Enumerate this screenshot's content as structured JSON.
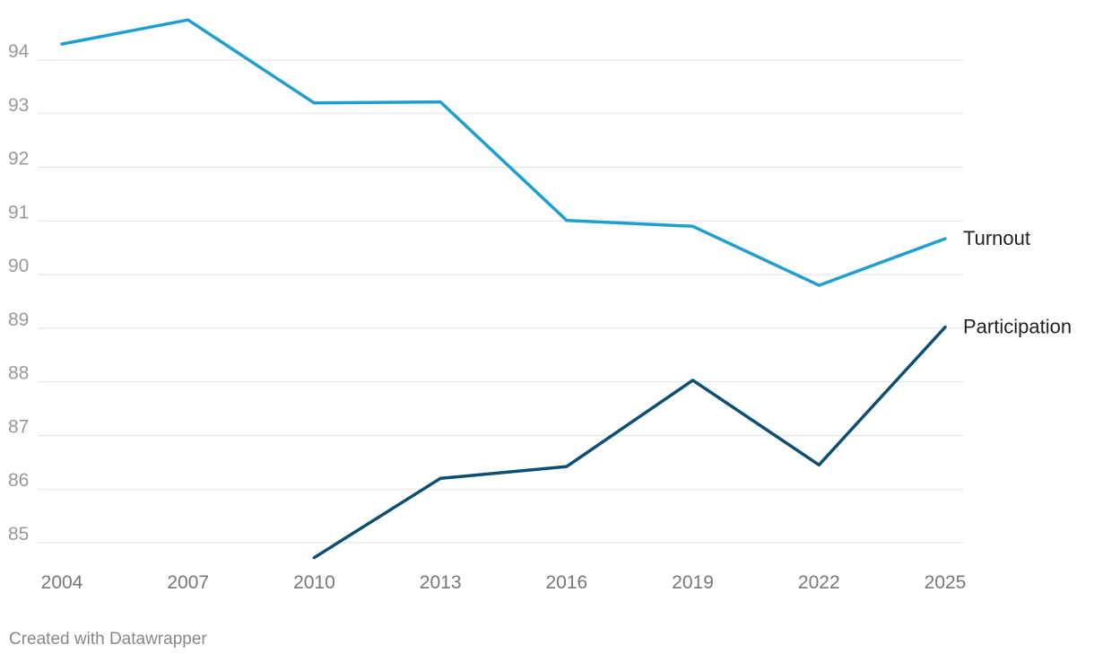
{
  "chart_data": {
    "type": "line",
    "x": [
      2004,
      2007,
      2010,
      2013,
      2016,
      2019,
      2022,
      2025
    ],
    "ylim": [
      85,
      94
    ],
    "yticks": [
      85,
      86,
      87,
      88,
      89,
      90,
      91,
      92,
      93,
      94
    ],
    "grid": true,
    "legend": "direct labels at line ends (right)",
    "series": [
      {
        "name": "Turnout",
        "color": "#1f9fd0",
        "values": [
          94.3,
          94.75,
          93.2,
          93.22,
          91.01,
          90.9,
          89.8,
          90.67
        ]
      },
      {
        "name": "Participation",
        "color": "#0b4f71",
        "values": [
          null,
          null,
          84.72,
          86.2,
          86.42,
          88.03,
          86.45,
          89.02
        ]
      }
    ]
  },
  "footer": {
    "credit": "Created with Datawrapper"
  }
}
